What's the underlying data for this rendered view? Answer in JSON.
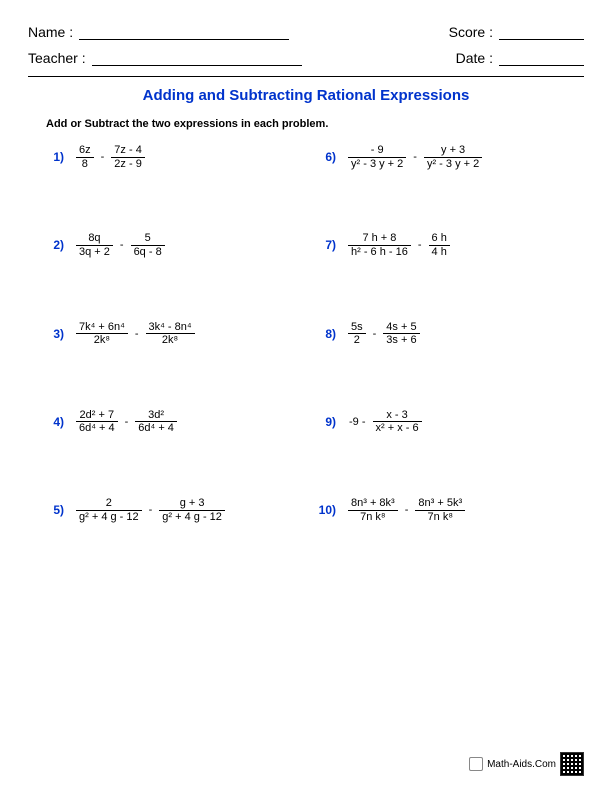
{
  "header": {
    "name_label": "Name :",
    "teacher_label": "Teacher :",
    "score_label": "Score :",
    "date_label": "Date :"
  },
  "title": "Adding and Subtracting Rational Expressions",
  "instructions": "Add or Subtract the two expressions in each problem.",
  "colors": {
    "title": "#0033cc",
    "number": "#0033cc",
    "text": "#000000",
    "background": "#ffffff"
  },
  "typography": {
    "title_fontsize": 15,
    "body_fontsize": 11,
    "header_fontsize": 14
  },
  "problems": [
    {
      "n": "1)",
      "a_num": "6z",
      "a_den": "8",
      "op": "-",
      "b_num": "7z - 4",
      "b_den": "2z - 9"
    },
    {
      "n": "6)",
      "a_num": "- 9",
      "a_den": "y² - 3 y + 2",
      "op": "-",
      "b_num": "y + 3",
      "b_den": "y² - 3 y + 2"
    },
    {
      "n": "2)",
      "a_num": "8q",
      "a_den": "3q + 2",
      "op": "-",
      "b_num": "5",
      "b_den": "6q - 8"
    },
    {
      "n": "7)",
      "a_num": "7 h + 8",
      "a_den": "h² - 6 h - 16",
      "op": "-",
      "b_num": "6 h",
      "b_den": "4 h"
    },
    {
      "n": "3)",
      "a_num": "7k⁴ + 6n⁴",
      "a_den": "2k⁸",
      "op": "-",
      "b_num": "3k⁴ - 8n⁴",
      "b_den": "2k⁸"
    },
    {
      "n": "8)",
      "a_num": "5s",
      "a_den": "2",
      "op": "-",
      "b_num": "4s + 5",
      "b_den": "3s + 6"
    },
    {
      "n": "4)",
      "a_num": "2d² + 7",
      "a_den": "6d⁴ + 4",
      "op": "-",
      "b_num": "3d²",
      "b_den": "6d⁴ + 4"
    },
    {
      "n": "9)",
      "lead": "-9  -",
      "a_num": "x - 3",
      "a_den": "x² + x - 6"
    },
    {
      "n": "5)",
      "a_num": "2",
      "a_den": "g² + 4 g - 12",
      "op": "-",
      "b_num": "g + 3",
      "b_den": "g² + 4 g - 12"
    },
    {
      "n": "10)",
      "a_num": "8n³ + 8k³",
      "a_den": "7n k⁸",
      "op": "-",
      "b_num": "8n³ + 5k³",
      "b_den": "7n k⁸"
    }
  ],
  "footer": {
    "brand": "Math-Aids.Com"
  }
}
